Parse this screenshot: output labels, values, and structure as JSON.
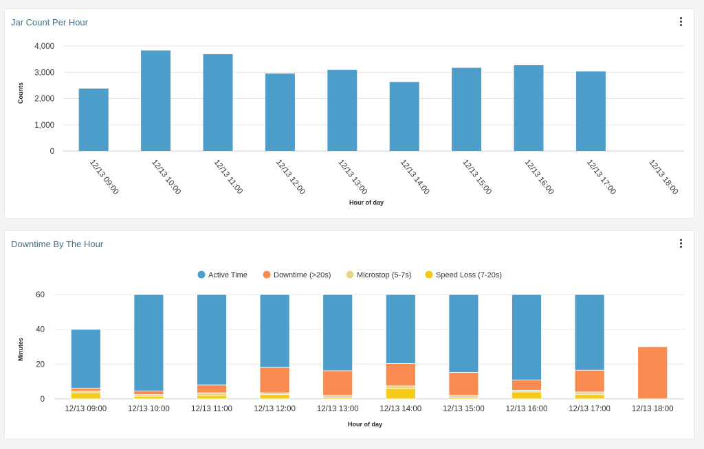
{
  "chart_data": [
    {
      "type": "bar",
      "title": "Jar Count Per Hour",
      "xlabel": "Hour of day",
      "ylabel": "Counts",
      "ylim": [
        0,
        4000
      ],
      "yticks": [
        "0",
        "1,000",
        "2,000",
        "3,000",
        "4,000"
      ],
      "ytick_values": [
        0,
        1000,
        2000,
        3000,
        4000
      ],
      "categories": [
        "12/13 09:00",
        "12/13 10:00",
        "12/13 11:00",
        "12/13 12:00",
        "12/13 13:00",
        "12/13 14:00",
        "12/13 15:00",
        "12/13 16:00",
        "12/13 17:00",
        "12/13 18:00"
      ],
      "values": [
        2380,
        3830,
        3690,
        2950,
        3090,
        2630,
        3170,
        3270,
        3030,
        0
      ],
      "color": "#4c9dc9"
    },
    {
      "type": "bar",
      "stacked": true,
      "title": "Downtime By The Hour",
      "xlabel": "Hour of day",
      "ylabel": "Minutes",
      "ylim": [
        0,
        60
      ],
      "yticks": [
        "0",
        "20",
        "40",
        "60"
      ],
      "ytick_values": [
        0,
        20,
        40,
        60
      ],
      "categories": [
        "12/13 09:00",
        "12/13 10:00",
        "12/13 11:00",
        "12/13 12:00",
        "12/13 13:00",
        "12/13 14:00",
        "12/13 15:00",
        "12/13 16:00",
        "12/13 17:00",
        "12/13 18:00"
      ],
      "series": [
        {
          "name": "Speed Loss (7-20s)",
          "color": "#f5cb1a",
          "values": [
            3.5,
            1.5,
            2,
            2.5,
            1,
            6,
            1,
            4,
            2.5,
            0
          ]
        },
        {
          "name": "Microstop (5-7s)",
          "color": "#ead48a",
          "values": [
            1,
            1,
            1.5,
            1,
            1,
            1.5,
            1,
            1,
            1.5,
            0
          ]
        },
        {
          "name": "Downtime (>20s)",
          "color": "#f98b50",
          "values": [
            1.7,
            2,
            4.5,
            14.6,
            14.2,
            12.8,
            13.2,
            5.8,
            12.5,
            30
          ]
        },
        {
          "name": "Active Time",
          "color": "#4c9dc9",
          "values": [
            33.8,
            55.5,
            52,
            41.9,
            43.8,
            39.7,
            44.8,
            49.2,
            43.5,
            0
          ]
        }
      ],
      "legend": [
        "Active Time",
        "Downtime (>20s)",
        "Microstop (5-7s)",
        "Speed Loss (7-20s)"
      ],
      "legend_colors": [
        "#4c9dc9",
        "#f98b50",
        "#ead48a",
        "#f5cb1a"
      ],
      "legend_position": "top-center"
    }
  ]
}
